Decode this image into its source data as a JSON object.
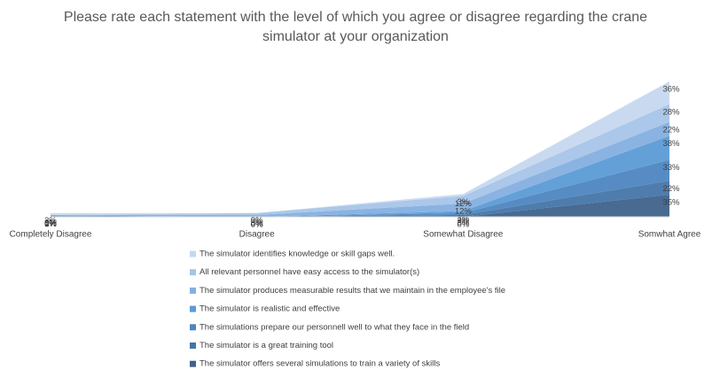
{
  "chart_data": {
    "type": "area",
    "title": "Please rate each statement with the level of which you agree or disagree regarding the crane simulator at your organization",
    "categories": [
      "Completely Disagree",
      "Disagree",
      "Somewhat Disagree",
      "Somwhat Agree"
    ],
    "series": [
      {
        "name": "The simulator identifies knowledge or skill gaps well.",
        "color": "#c6d8ef",
        "values": [
          3,
          0,
          3,
          36
        ],
        "value_labels": [
          "3%",
          "0%",
          "3%",
          "36%"
        ]
      },
      {
        "name": "All relevant personnel have easy access to the simulator(s)",
        "color": "#a6c4e8",
        "values": [
          0,
          3,
          12,
          28
        ],
        "value_labels": [
          "0%",
          "3%",
          "12%",
          "28%"
        ]
      },
      {
        "name": "The simulator produces measurable results that we maintain in the employee's file",
        "color": "#84afe0",
        "values": [
          1,
          3,
          12,
          22
        ],
        "value_labels": [
          "1%",
          "3%",
          "12%",
          "22%"
        ]
      },
      {
        "name": "The simulator is realistic and effective",
        "color": "#5b9bd5",
        "values": [
          0,
          0,
          3,
          38
        ],
        "value_labels": [
          "0%",
          "0%",
          "3%",
          "38%"
        ]
      },
      {
        "name": "The simulations prepare our personnell well to what they face in the field",
        "color": "#4d86c0",
        "values": [
          1,
          0,
          3,
          33
        ],
        "value_labels": [
          "1%",
          "0%",
          "3%",
          "33%"
        ]
      },
      {
        "name": "The simulator is a great training tool",
        "color": "#4575a8",
        "values": [
          0,
          0,
          3,
          22
        ],
        "value_labels": [
          "0%",
          "0%",
          "3%",
          "22%"
        ]
      },
      {
        "name": "The simulator offers several simulations to train a variety of skills",
        "color": "#3f628b",
        "values": [
          1,
          0,
          0,
          35
        ],
        "value_labels": [
          "1%",
          "0%",
          "0%",
          "35%"
        ]
      }
    ]
  }
}
